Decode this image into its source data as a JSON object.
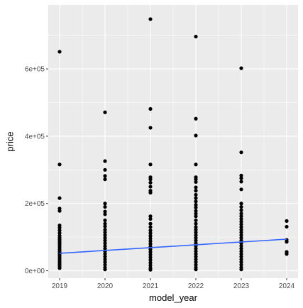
{
  "chart_data": {
    "type": "scatter",
    "title": "",
    "xlabel": "model_year",
    "ylabel": "price",
    "x_ticks": [
      2019,
      2020,
      2021,
      2022,
      2023,
      2024
    ],
    "x_tick_labels": [
      "2019",
      "2020",
      "2021",
      "2022",
      "2023",
      "2024"
    ],
    "y_ticks": [
      0,
      200000,
      400000,
      600000
    ],
    "y_tick_labels": [
      "0e+00",
      "2e+05",
      "4e+05",
      "6e+05"
    ],
    "xlim": [
      2018.75,
      2024.25
    ],
    "ylim": [
      -22000,
      790000
    ],
    "grid": true,
    "points": [
      [
        2019,
        651000
      ],
      [
        2019,
        316000
      ],
      [
        2019,
        216000
      ],
      [
        2019,
        185000
      ],
      [
        2019,
        178000
      ],
      [
        2019,
        135000
      ],
      [
        2019,
        128000
      ],
      [
        2019,
        120000
      ],
      [
        2019,
        112000
      ],
      [
        2019,
        104000
      ],
      [
        2019,
        98000
      ],
      [
        2019,
        92000
      ],
      [
        2019,
        86000
      ],
      [
        2019,
        80000
      ],
      [
        2019,
        74000
      ],
      [
        2019,
        68000
      ],
      [
        2019,
        62000
      ],
      [
        2019,
        56000
      ],
      [
        2019,
        50000
      ],
      [
        2019,
        44000
      ],
      [
        2019,
        38000
      ],
      [
        2019,
        32000
      ],
      [
        2019,
        26000
      ],
      [
        2019,
        20000
      ],
      [
        2019,
        14000
      ],
      [
        2019,
        8000
      ],
      [
        2020,
        471000
      ],
      [
        2020,
        326000
      ],
      [
        2020,
        300000
      ],
      [
        2020,
        282000
      ],
      [
        2020,
        272000
      ],
      [
        2020,
        200000
      ],
      [
        2020,
        190000
      ],
      [
        2020,
        176000
      ],
      [
        2020,
        168000
      ],
      [
        2020,
        150000
      ],
      [
        2020,
        140000
      ],
      [
        2020,
        132000
      ],
      [
        2020,
        122000
      ],
      [
        2020,
        114000
      ],
      [
        2020,
        106000
      ],
      [
        2020,
        98000
      ],
      [
        2020,
        90000
      ],
      [
        2020,
        82000
      ],
      [
        2020,
        74000
      ],
      [
        2020,
        66000
      ],
      [
        2020,
        58000
      ],
      [
        2020,
        50000
      ],
      [
        2020,
        42000
      ],
      [
        2020,
        34000
      ],
      [
        2020,
        26000
      ],
      [
        2020,
        18000
      ],
      [
        2020,
        10000
      ],
      [
        2020,
        4000
      ],
      [
        2021,
        748000
      ],
      [
        2021,
        481000
      ],
      [
        2021,
        425000
      ],
      [
        2021,
        316000
      ],
      [
        2021,
        278000
      ],
      [
        2021,
        272000
      ],
      [
        2021,
        262000
      ],
      [
        2021,
        250000
      ],
      [
        2021,
        238000
      ],
      [
        2021,
        232000
      ],
      [
        2021,
        162000
      ],
      [
        2021,
        154000
      ],
      [
        2021,
        140000
      ],
      [
        2021,
        130000
      ],
      [
        2021,
        120000
      ],
      [
        2021,
        112000
      ],
      [
        2021,
        104000
      ],
      [
        2021,
        96000
      ],
      [
        2021,
        88000
      ],
      [
        2021,
        80000
      ],
      [
        2021,
        72000
      ],
      [
        2021,
        64000
      ],
      [
        2021,
        56000
      ],
      [
        2021,
        48000
      ],
      [
        2021,
        40000
      ],
      [
        2021,
        32000
      ],
      [
        2021,
        24000
      ],
      [
        2021,
        16000
      ],
      [
        2021,
        8000
      ],
      [
        2021,
        3000
      ],
      [
        2022,
        696000
      ],
      [
        2022,
        452000
      ],
      [
        2022,
        402000
      ],
      [
        2022,
        316000
      ],
      [
        2022,
        278000
      ],
      [
        2022,
        272000
      ],
      [
        2022,
        264000
      ],
      [
        2022,
        248000
      ],
      [
        2022,
        238000
      ],
      [
        2022,
        226000
      ],
      [
        2022,
        216000
      ],
      [
        2022,
        206000
      ],
      [
        2022,
        196000
      ],
      [
        2022,
        188000
      ],
      [
        2022,
        178000
      ],
      [
        2022,
        170000
      ],
      [
        2022,
        162000
      ],
      [
        2022,
        150000
      ],
      [
        2022,
        140000
      ],
      [
        2022,
        130000
      ],
      [
        2022,
        122000
      ],
      [
        2022,
        114000
      ],
      [
        2022,
        106000
      ],
      [
        2022,
        98000
      ],
      [
        2022,
        90000
      ],
      [
        2022,
        82000
      ],
      [
        2022,
        74000
      ],
      [
        2022,
        66000
      ],
      [
        2022,
        58000
      ],
      [
        2022,
        50000
      ],
      [
        2022,
        42000
      ],
      [
        2022,
        34000
      ],
      [
        2022,
        26000
      ],
      [
        2022,
        18000
      ],
      [
        2022,
        10000
      ],
      [
        2022,
        4000
      ],
      [
        2023,
        602000
      ],
      [
        2023,
        352000
      ],
      [
        2023,
        283000
      ],
      [
        2023,
        275000
      ],
      [
        2023,
        265000
      ],
      [
        2023,
        242000
      ],
      [
        2023,
        200000
      ],
      [
        2023,
        190000
      ],
      [
        2023,
        180000
      ],
      [
        2023,
        170000
      ],
      [
        2023,
        162000
      ],
      [
        2023,
        154000
      ],
      [
        2023,
        146000
      ],
      [
        2023,
        138000
      ],
      [
        2023,
        130000
      ],
      [
        2023,
        122000
      ],
      [
        2023,
        114000
      ],
      [
        2023,
        106000
      ],
      [
        2023,
        98000
      ],
      [
        2023,
        90000
      ],
      [
        2023,
        82000
      ],
      [
        2023,
        74000
      ],
      [
        2023,
        66000
      ],
      [
        2023,
        58000
      ],
      [
        2023,
        50000
      ],
      [
        2023,
        42000
      ],
      [
        2023,
        34000
      ],
      [
        2023,
        26000
      ],
      [
        2023,
        18000
      ],
      [
        2023,
        10000
      ],
      [
        2023,
        4000
      ],
      [
        2024,
        148000
      ],
      [
        2024,
        131000
      ],
      [
        2024,
        92000
      ],
      [
        2024,
        86000
      ],
      [
        2024,
        56000
      ],
      [
        2024,
        50000
      ]
    ],
    "trend_line": {
      "type": "linear",
      "x": [
        2019,
        2024
      ],
      "y": [
        52000,
        94000
      ],
      "color": "#3366ff"
    },
    "point_color": "#000000",
    "panel_background": "#ebebeb",
    "grid_color": "#ffffff"
  }
}
